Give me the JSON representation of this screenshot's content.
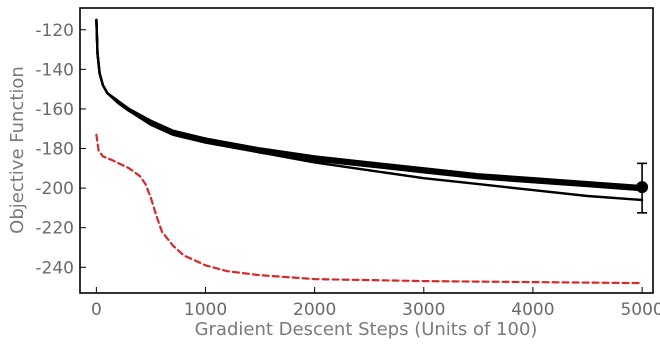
{
  "chart_data": {
    "type": "line",
    "title": "",
    "xlabel": "Gradient Descent Steps (Units of 100)",
    "ylabel": "Objective Function",
    "xlim": [
      -150,
      5100
    ],
    "ylim": [
      -253,
      -109
    ],
    "x_ticks": [
      0,
      1000,
      2000,
      3000,
      4000,
      5000
    ],
    "x_tick_labels": [
      "0",
      "1000",
      "2000",
      "3000",
      "4000",
      "5000"
    ],
    "y_ticks": [
      -240,
      -220,
      -200,
      -180,
      -160,
      -140,
      -120
    ],
    "y_tick_labels": [
      "-240",
      "-220",
      "-200",
      "-180",
      "-160",
      "-140",
      "-120"
    ],
    "grid": false,
    "legend": "none",
    "series": [
      {
        "color": "#000000",
        "style": "solid",
        "points": [
          [
            0,
            -115
          ],
          [
            10,
            -132
          ],
          [
            30,
            -142
          ],
          [
            60,
            -148
          ],
          [
            100,
            -152
          ],
          [
            200,
            -156
          ],
          [
            300,
            -160
          ],
          [
            500,
            -166
          ],
          [
            700,
            -171
          ],
          [
            1000,
            -175
          ],
          [
            1500,
            -180
          ],
          [
            2000,
            -184
          ],
          [
            2500,
            -187
          ],
          [
            3000,
            -190
          ],
          [
            3500,
            -193
          ],
          [
            4000,
            -195
          ],
          [
            4500,
            -197
          ],
          [
            5000,
            -199
          ]
        ]
      },
      {
        "color": "#000000",
        "style": "solid",
        "points": [
          [
            0,
            -115
          ],
          [
            10,
            -132
          ],
          [
            30,
            -142
          ],
          [
            60,
            -148
          ],
          [
            100,
            -152
          ],
          [
            200,
            -157
          ],
          [
            300,
            -161
          ],
          [
            500,
            -168
          ],
          [
            700,
            -173
          ],
          [
            1000,
            -177
          ],
          [
            1500,
            -182
          ],
          [
            2000,
            -186
          ],
          [
            2500,
            -189
          ],
          [
            3000,
            -192
          ],
          [
            3500,
            -195
          ],
          [
            4000,
            -197
          ],
          [
            4500,
            -199
          ],
          [
            5000,
            -201
          ]
        ]
      },
      {
        "color": "#000000",
        "style": "solid",
        "points": [
          [
            0,
            -115
          ],
          [
            10,
            -132
          ],
          [
            30,
            -142
          ],
          [
            60,
            -148
          ],
          [
            100,
            -152
          ],
          [
            200,
            -157
          ],
          [
            300,
            -161
          ],
          [
            500,
            -166
          ],
          [
            700,
            -171
          ],
          [
            1000,
            -176
          ],
          [
            1500,
            -182
          ],
          [
            2000,
            -187
          ],
          [
            2500,
            -191
          ],
          [
            3000,
            -195
          ],
          [
            3500,
            -198
          ],
          [
            4000,
            -201
          ],
          [
            4500,
            -204
          ],
          [
            5000,
            -206
          ]
        ]
      },
      {
        "color": "#d42a2a",
        "style": "dashed",
        "points": [
          [
            0,
            -173
          ],
          [
            20,
            -181
          ],
          [
            60,
            -184
          ],
          [
            150,
            -186
          ],
          [
            300,
            -190
          ],
          [
            400,
            -194
          ],
          [
            450,
            -198
          ],
          [
            500,
            -205
          ],
          [
            550,
            -214
          ],
          [
            600,
            -222
          ],
          [
            700,
            -229
          ],
          [
            800,
            -234
          ],
          [
            1000,
            -239
          ],
          [
            1200,
            -242
          ],
          [
            1500,
            -244
          ],
          [
            2000,
            -246
          ],
          [
            3000,
            -247
          ],
          [
            4000,
            -247.5
          ],
          [
            5000,
            -248
          ]
        ]
      }
    ],
    "endpoint": {
      "x": 5000,
      "y": -199.5,
      "error_low": -212.5,
      "error_high": -187.5
    }
  }
}
